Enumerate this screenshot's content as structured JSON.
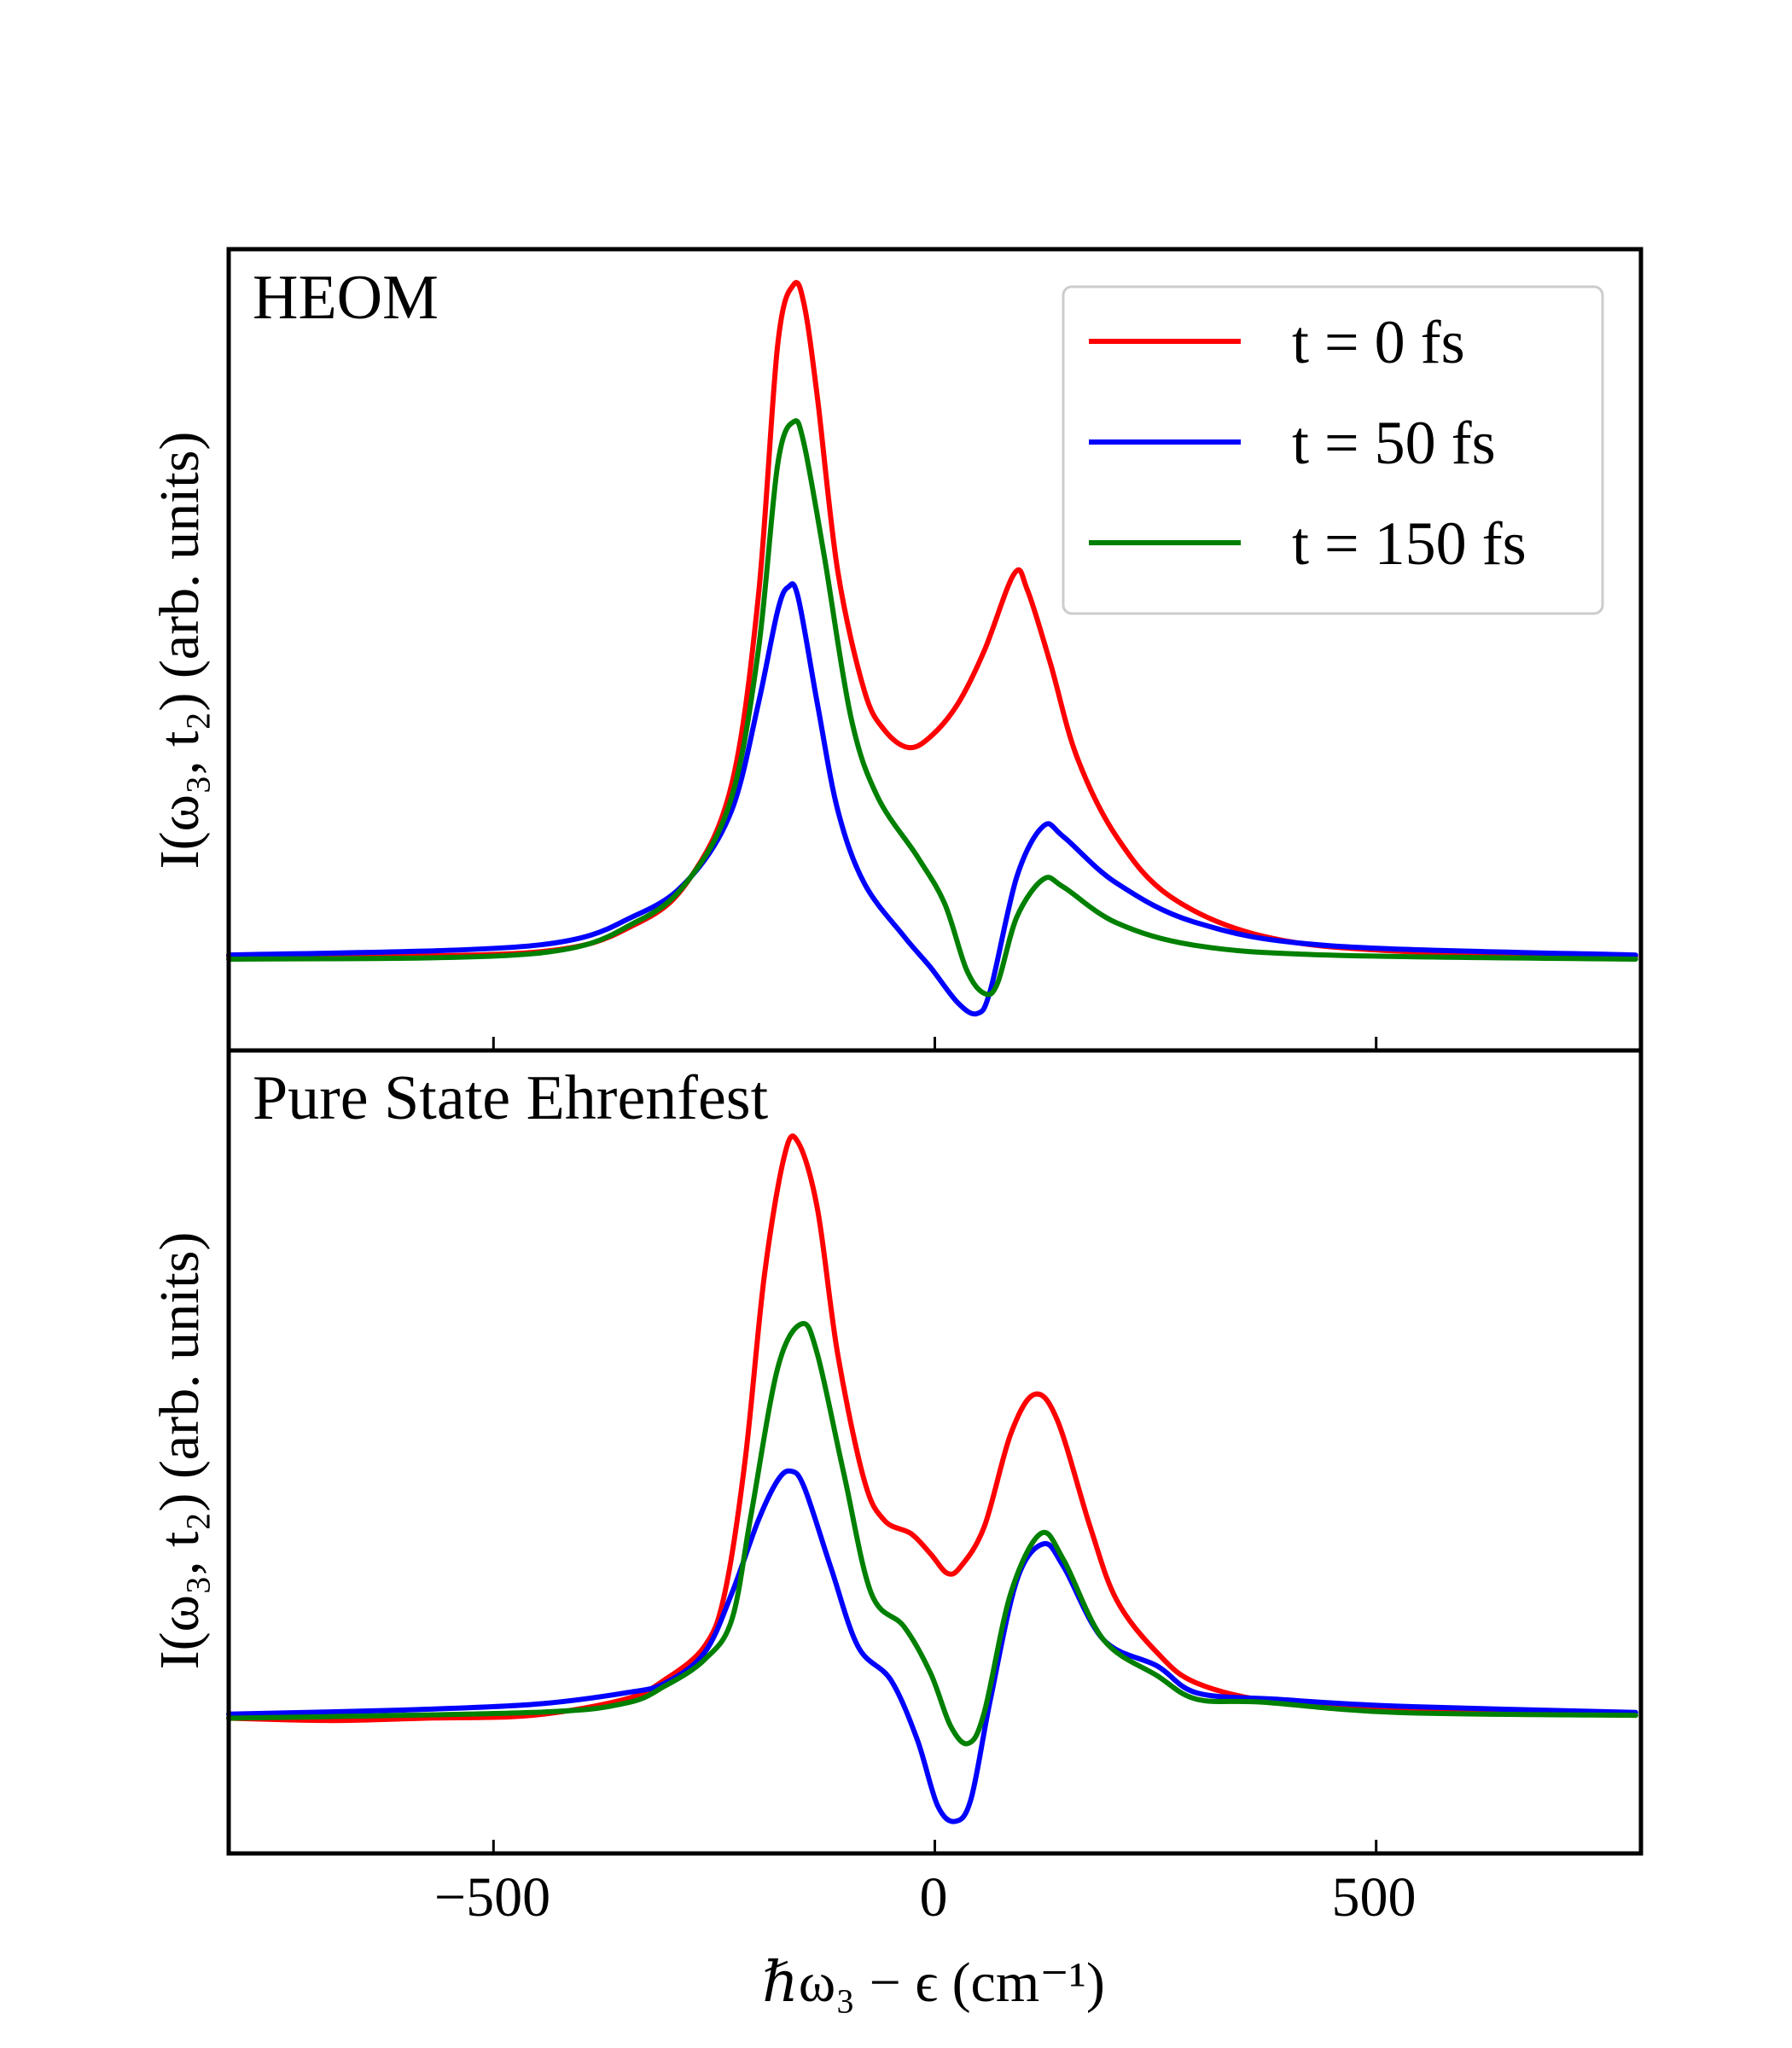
{
  "chart_data": [
    {
      "type": "line",
      "title": "HEOM",
      "xlabel": "",
      "ylabel": "I(ω₃, t₂) (arb. units)",
      "xlim": [
        -800,
        800
      ],
      "ylim": [
        -0.14,
        1.053
      ],
      "xticks": [
        -500,
        0,
        500
      ],
      "xtick_labels_shown": false,
      "yticks": [],
      "grid": false,
      "legend": "top-right",
      "series": [
        {
          "name": "t = 0 fs",
          "color": "#ff0000",
          "x": [
            -800,
            -456,
            -336,
            -276,
            -230,
            -200,
            -178,
            -160,
            -148,
            -133,
            -110,
            -80,
            -57,
            -30,
            -5,
            26,
            56,
            90,
            105,
            131,
            161,
            206,
            267,
            372,
            523,
            794
          ],
          "y": [
            0.0,
            0.006,
            0.05,
            0.119,
            0.257,
            0.535,
            0.911,
            1.0,
            0.97,
            0.832,
            0.574,
            0.396,
            0.337,
            0.311,
            0.327,
            0.376,
            0.455,
            0.57,
            0.545,
            0.436,
            0.297,
            0.178,
            0.089,
            0.03,
            0.008,
            0.0
          ]
        },
        {
          "name": "t = 50 fs",
          "color": "#0000ff",
          "x": [
            -800,
            -456,
            -336,
            -276,
            -230,
            -200,
            -178,
            -166,
            -155,
            -133,
            -110,
            -80,
            -35,
            -5,
            26,
            48,
            63,
            93,
            123,
            146,
            206,
            297,
            447,
            794
          ],
          "y": [
            0.002,
            0.016,
            0.063,
            0.119,
            0.218,
            0.376,
            0.515,
            0.55,
            0.535,
            0.376,
            0.218,
            0.109,
            0.03,
            -0.016,
            -0.069,
            -0.085,
            -0.05,
            0.119,
            0.194,
            0.178,
            0.109,
            0.05,
            0.016,
            0.002
          ]
        },
        {
          "name": "t = 150 fs",
          "color": "#008000",
          "x": [
            -800,
            -456,
            -336,
            -276,
            -230,
            -200,
            -178,
            -160,
            -148,
            -125,
            -95,
            -65,
            -20,
            11,
            36,
            56,
            71,
            93,
            123,
            146,
            206,
            297,
            447,
            794
          ],
          "y": [
            -0.004,
            0.004,
            0.053,
            0.119,
            0.238,
            0.455,
            0.733,
            0.796,
            0.762,
            0.594,
            0.356,
            0.238,
            0.149,
            0.079,
            -0.02,
            -0.055,
            -0.04,
            0.059,
            0.115,
            0.103,
            0.05,
            0.016,
            0.002,
            -0.004
          ]
        }
      ]
    },
    {
      "type": "line",
      "title": "Pure State Ehrenfest",
      "xlabel": "ℏω₃ − ϵ (cm⁻¹)",
      "ylabel": "I(ω₃, t₂) (arb. units)",
      "xlim": [
        -800,
        800
      ],
      "ylim": [
        -0.241,
        1.16
      ],
      "xticks": [
        -500,
        0,
        500
      ],
      "xtick_labels": [
        "−500",
        "0",
        "500"
      ],
      "yticks": [],
      "grid": false,
      "series": [
        {
          "name": "t = 0 fs",
          "color": "#ff0000",
          "x": [
            -800,
            -683,
            -578,
            -456,
            -351,
            -306,
            -261,
            -238,
            -215,
            -193,
            -170,
            -155,
            -133,
            -110,
            -80,
            -57,
            -27,
            -5,
            14,
            29,
            56,
            86,
            113,
            139,
            176,
            206,
            252,
            297,
            387,
            523,
            794
          ],
          "y": [
            -0.005,
            -0.009,
            -0.005,
            0,
            0.028,
            0.062,
            0.12,
            0.213,
            0.444,
            0.769,
            0.979,
            1.0,
            0.884,
            0.63,
            0.41,
            0.34,
            0.317,
            0.282,
            0.248,
            0.259,
            0.329,
            0.491,
            0.56,
            0.514,
            0.329,
            0.201,
            0.109,
            0.056,
            0.023,
            0.012,
            0
          ]
        },
        {
          "name": "t = 50 fs",
          "color": "#0000ff",
          "x": [
            -800,
            -608,
            -456,
            -351,
            -306,
            -261,
            -230,
            -200,
            -178,
            -163,
            -148,
            -118,
            -87,
            -50,
            -20,
            3,
            23,
            41,
            63,
            93,
            123,
            146,
            191,
            252,
            297,
            387,
            523,
            794
          ],
          "y": [
            0.002,
            0.009,
            0.019,
            0.039,
            0.056,
            0.109,
            0.213,
            0.34,
            0.41,
            0.426,
            0.398,
            0.259,
            0.12,
            0.062,
            -0.042,
            -0.157,
            -0.185,
            -0.146,
            0.028,
            0.236,
            0.299,
            0.259,
            0.132,
            0.086,
            0.039,
            0.028,
            0.016,
            0.005
          ]
        },
        {
          "name": "t = 150 fs",
          "color": "#008000",
          "x": [
            -800,
            -456,
            -351,
            -306,
            -261,
            -230,
            -208,
            -178,
            -151,
            -133,
            -103,
            -72,
            -35,
            -5,
            18,
            38,
            56,
            86,
            120,
            146,
            191,
            252,
            297,
            372,
            523,
            794
          ],
          "y": [
            -0.005,
            0.005,
            0.021,
            0.051,
            0.097,
            0.167,
            0.352,
            0.606,
            0.683,
            0.63,
            0.421,
            0.213,
            0.155,
            0.074,
            -0.019,
            -0.049,
            0.005,
            0.213,
            0.317,
            0.271,
            0.132,
            0.069,
            0.028,
            0.023,
            0.005,
            0
          ]
        }
      ]
    }
  ]
}
